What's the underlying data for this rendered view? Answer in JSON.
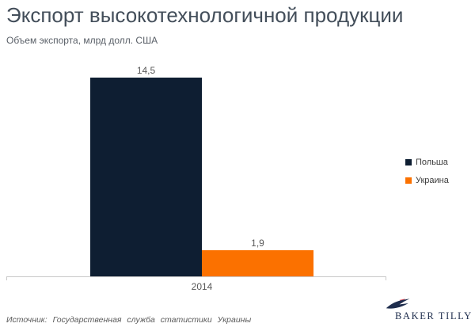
{
  "header": {
    "title": "Экспорт высокотехнологичной продукции",
    "subtitle": "Объем экспорта, млрд долл. США"
  },
  "chart_data": {
    "type": "bar",
    "title": "Экспорт высокотехнологичной продукции",
    "subtitle": "Объем экспорта, млрд долл. США",
    "unit": "млрд долл. США",
    "categories": [
      "2014"
    ],
    "series": [
      {
        "name": "Польша",
        "values": [
          14.5
        ],
        "label": "14,5",
        "color": "#0e1e32"
      },
      {
        "name": "Украина",
        "values": [
          1.9
        ],
        "label": "1,9",
        "color": "#fb7100"
      }
    ],
    "ylim": [
      0,
      14.5
    ],
    "grid": false,
    "legend_position": "right",
    "xlabel": "",
    "ylabel": ""
  },
  "footer": {
    "source": "Источник: Государственная служба статистики Украины",
    "logo_text": "BAKER TILLY"
  },
  "colors": {
    "bar_poland": "#0e1e32",
    "bar_ukraine": "#fb7100",
    "axis": "#c8c8c8",
    "title": "#434e5a",
    "logo_navy": "#1e2d4d",
    "logo_red": "#e8505b"
  }
}
